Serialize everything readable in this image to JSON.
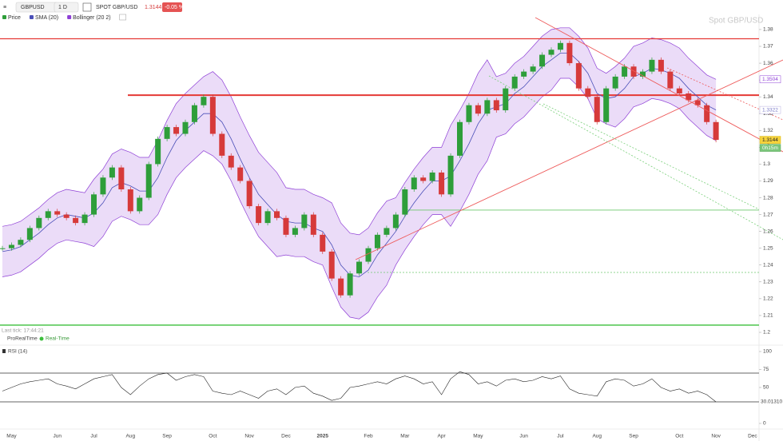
{
  "toolbar": {
    "symbol": "GBPUSD",
    "interval": "1 D",
    "instrument": "SPOT GBP/USD",
    "change": "-0.05 %"
  },
  "watermark": "Spot GBP/USD",
  "last_tick": "Last tick: 17:44:21",
  "provider": "ProRealTime",
  "mode": "Real-Time",
  "countdown": "0h15m",
  "chart_data": [
    {
      "type": "candlestick",
      "categories": [
        null,
        "May",
        null,
        null,
        null,
        null,
        "Jun",
        null,
        null,
        null,
        "Jul",
        null,
        null,
        null,
        "Aug",
        null,
        null,
        null,
        "Sep",
        null,
        null,
        null,
        null,
        "Oct",
        null,
        null,
        null,
        "Nov",
        null,
        null,
        null,
        "Dec",
        null,
        null,
        null,
        "2025",
        null,
        null,
        null,
        null,
        "Feb",
        null,
        null,
        null,
        "Mar",
        null,
        null,
        null,
        "Apr",
        null,
        null,
        null,
        "May",
        null,
        null,
        null,
        null,
        "Jun",
        null,
        null,
        null,
        "Jul",
        null,
        null,
        null,
        "Aug",
        null,
        null,
        null,
        "Sep",
        null,
        null,
        null,
        null,
        "Oct",
        null,
        null,
        null,
        "Nov",
        null,
        null,
        null,
        "Dec"
      ],
      "series": [
        {
          "name": "Price",
          "color": "#2e9e3a",
          "down_color": "#d63a3a",
          "values": [
            1.25,
            1.252,
            1.255,
            1.262,
            1.268,
            1.272,
            1.27,
            1.268,
            1.265,
            1.27,
            1.282,
            1.292,
            1.298,
            1.285,
            1.272,
            1.28,
            1.3,
            1.315,
            1.322,
            1.318,
            1.325,
            1.335,
            1.34,
            1.318,
            1.305,
            1.298,
            1.29,
            1.275,
            1.265,
            1.272,
            1.268,
            1.258,
            1.262,
            1.27,
            1.258,
            1.248,
            1.232,
            1.222,
            1.235,
            1.242,
            1.25,
            1.258,
            1.262,
            1.27,
            1.285,
            1.292,
            1.29,
            1.295,
            1.282,
            1.305,
            1.325,
            1.335,
            1.33,
            1.338,
            1.332,
            1.345,
            1.352,
            1.355,
            1.358,
            1.365,
            1.368,
            1.372,
            1.36,
            1.345,
            1.34,
            1.325,
            1.345,
            1.352,
            1.358,
            1.352,
            1.355,
            1.362,
            1.355,
            1.345,
            1.342,
            1.338,
            1.335,
            1.325,
            1.3144,
            null,
            null,
            null,
            null
          ]
        },
        {
          "name": "SMA (20)",
          "color": "#4a4fb8",
          "values": [
            1.248,
            1.249,
            1.251,
            1.255,
            1.259,
            1.264,
            1.268,
            1.27,
            1.269,
            1.268,
            1.271,
            1.277,
            1.286,
            1.289,
            1.287,
            1.284,
            1.284,
            1.292,
            1.304,
            1.314,
            1.32,
            1.325,
            1.33,
            1.33,
            1.325,
            1.315,
            1.303,
            1.292,
            1.282,
            1.276,
            1.27,
            1.266,
            1.265,
            1.265,
            1.262,
            1.26,
            1.252,
            1.24,
            1.234,
            1.233,
            1.237,
            1.246,
            1.253,
            1.26,
            1.269,
            1.277,
            1.284,
            1.29,
            1.29,
            1.293,
            1.302,
            1.312,
            1.324,
            1.332,
            1.334,
            1.336,
            1.342,
            1.346,
            1.352,
            1.358,
            1.362,
            1.366,
            1.366,
            1.361,
            1.354,
            1.342,
            1.339,
            1.34,
            1.345,
            1.352,
            1.354,
            1.357,
            1.356,
            1.354,
            1.351,
            1.345,
            1.34,
            1.335,
            1.3322,
            null,
            null,
            null,
            null
          ]
        },
        {
          "name": "Bollinger (20 2)",
          "color": "#8e3fd6",
          "upper": [
            1.263,
            1.264,
            1.266,
            1.27,
            1.274,
            1.279,
            1.283,
            1.285,
            1.284,
            1.283,
            1.291,
            1.297,
            1.306,
            1.309,
            1.307,
            1.304,
            1.304,
            1.314,
            1.326,
            1.336,
            1.342,
            1.347,
            1.352,
            1.355,
            1.35,
            1.34,
            1.328,
            1.317,
            1.307,
            1.301,
            1.295,
            1.286,
            1.285,
            1.285,
            1.282,
            1.28,
            1.277,
            1.265,
            1.259,
            1.258,
            1.262,
            1.271,
            1.278,
            1.28,
            1.289,
            1.297,
            1.304,
            1.31,
            1.31,
            1.323,
            1.332,
            1.342,
            1.354,
            1.362,
            1.352,
            1.354,
            1.36,
            1.364,
            1.37,
            1.376,
            1.38,
            1.381,
            1.381,
            1.376,
            1.369,
            1.357,
            1.354,
            1.358,
            1.363,
            1.37,
            1.372,
            1.375,
            1.374,
            1.372,
            1.369,
            1.363,
            1.358,
            1.353,
            1.3504,
            null,
            null,
            null,
            null
          ],
          "lower": [
            1.233,
            1.234,
            1.236,
            1.24,
            1.244,
            1.249,
            1.253,
            1.255,
            1.254,
            1.253,
            1.251,
            1.257,
            1.266,
            1.269,
            1.267,
            1.264,
            1.264,
            1.27,
            1.282,
            1.292,
            1.298,
            1.303,
            1.308,
            1.305,
            1.3,
            1.29,
            1.278,
            1.267,
            1.257,
            1.251,
            1.245,
            1.246,
            1.245,
            1.245,
            1.242,
            1.24,
            1.227,
            1.215,
            1.209,
            1.208,
            1.212,
            1.221,
            1.228,
            1.24,
            1.249,
            1.257,
            1.264,
            1.27,
            1.27,
            1.263,
            1.272,
            1.282,
            1.294,
            1.302,
            1.316,
            1.318,
            1.324,
            1.328,
            1.334,
            1.34,
            1.344,
            1.351,
            1.351,
            1.346,
            1.339,
            1.327,
            1.324,
            1.322,
            1.327,
            1.334,
            1.336,
            1.339,
            1.338,
            1.336,
            1.333,
            1.327,
            1.322,
            1.317,
            1.314,
            null,
            null,
            null,
            null
          ]
        }
      ],
      "ylim": [
        1.2,
        1.389
      ],
      "yticks": [
        1.2,
        1.21,
        1.22,
        1.23,
        1.24,
        1.25,
        1.26,
        1.27,
        1.28,
        1.29,
        1.3,
        1.31,
        1.32,
        1.33,
        1.34,
        1.35,
        1.36,
        1.37,
        1.38
      ],
      "grid": false,
      "levels": [
        {
          "value": 1.3745,
          "color": "#e53935"
        },
        {
          "value": 1.341,
          "color": "#e53935"
        },
        {
          "value": 1.2727,
          "color": "#6cc96c"
        },
        {
          "value": 1.2356,
          "color": "#6cc96c"
        },
        {
          "value": 1.2043,
          "color": "#3cbf3c"
        }
      ]
    },
    {
      "type": "line",
      "name": "RSI (14)",
      "color": "#222222",
      "values": [
        45,
        50,
        55,
        58,
        60,
        62,
        55,
        52,
        48,
        55,
        62,
        65,
        68,
        50,
        40,
        52,
        62,
        68,
        70,
        60,
        65,
        68,
        65,
        45,
        42,
        40,
        45,
        40,
        35,
        45,
        48,
        40,
        50,
        52,
        42,
        38,
        32,
        35,
        50,
        52,
        55,
        58,
        55,
        62,
        66,
        62,
        55,
        58,
        40,
        62,
        72,
        68,
        55,
        58,
        52,
        60,
        62,
        58,
        60,
        65,
        62,
        66,
        48,
        42,
        40,
        38,
        58,
        62,
        60,
        52,
        55,
        62,
        50,
        45,
        48,
        42,
        45,
        40,
        30.0131,
        null,
        null,
        null,
        null
      ],
      "last_label": "30.01310",
      "ylim": [
        0,
        100
      ],
      "yticks": [
        0,
        50,
        75,
        100
      ],
      "levels": [
        70,
        30
      ]
    }
  ]
}
